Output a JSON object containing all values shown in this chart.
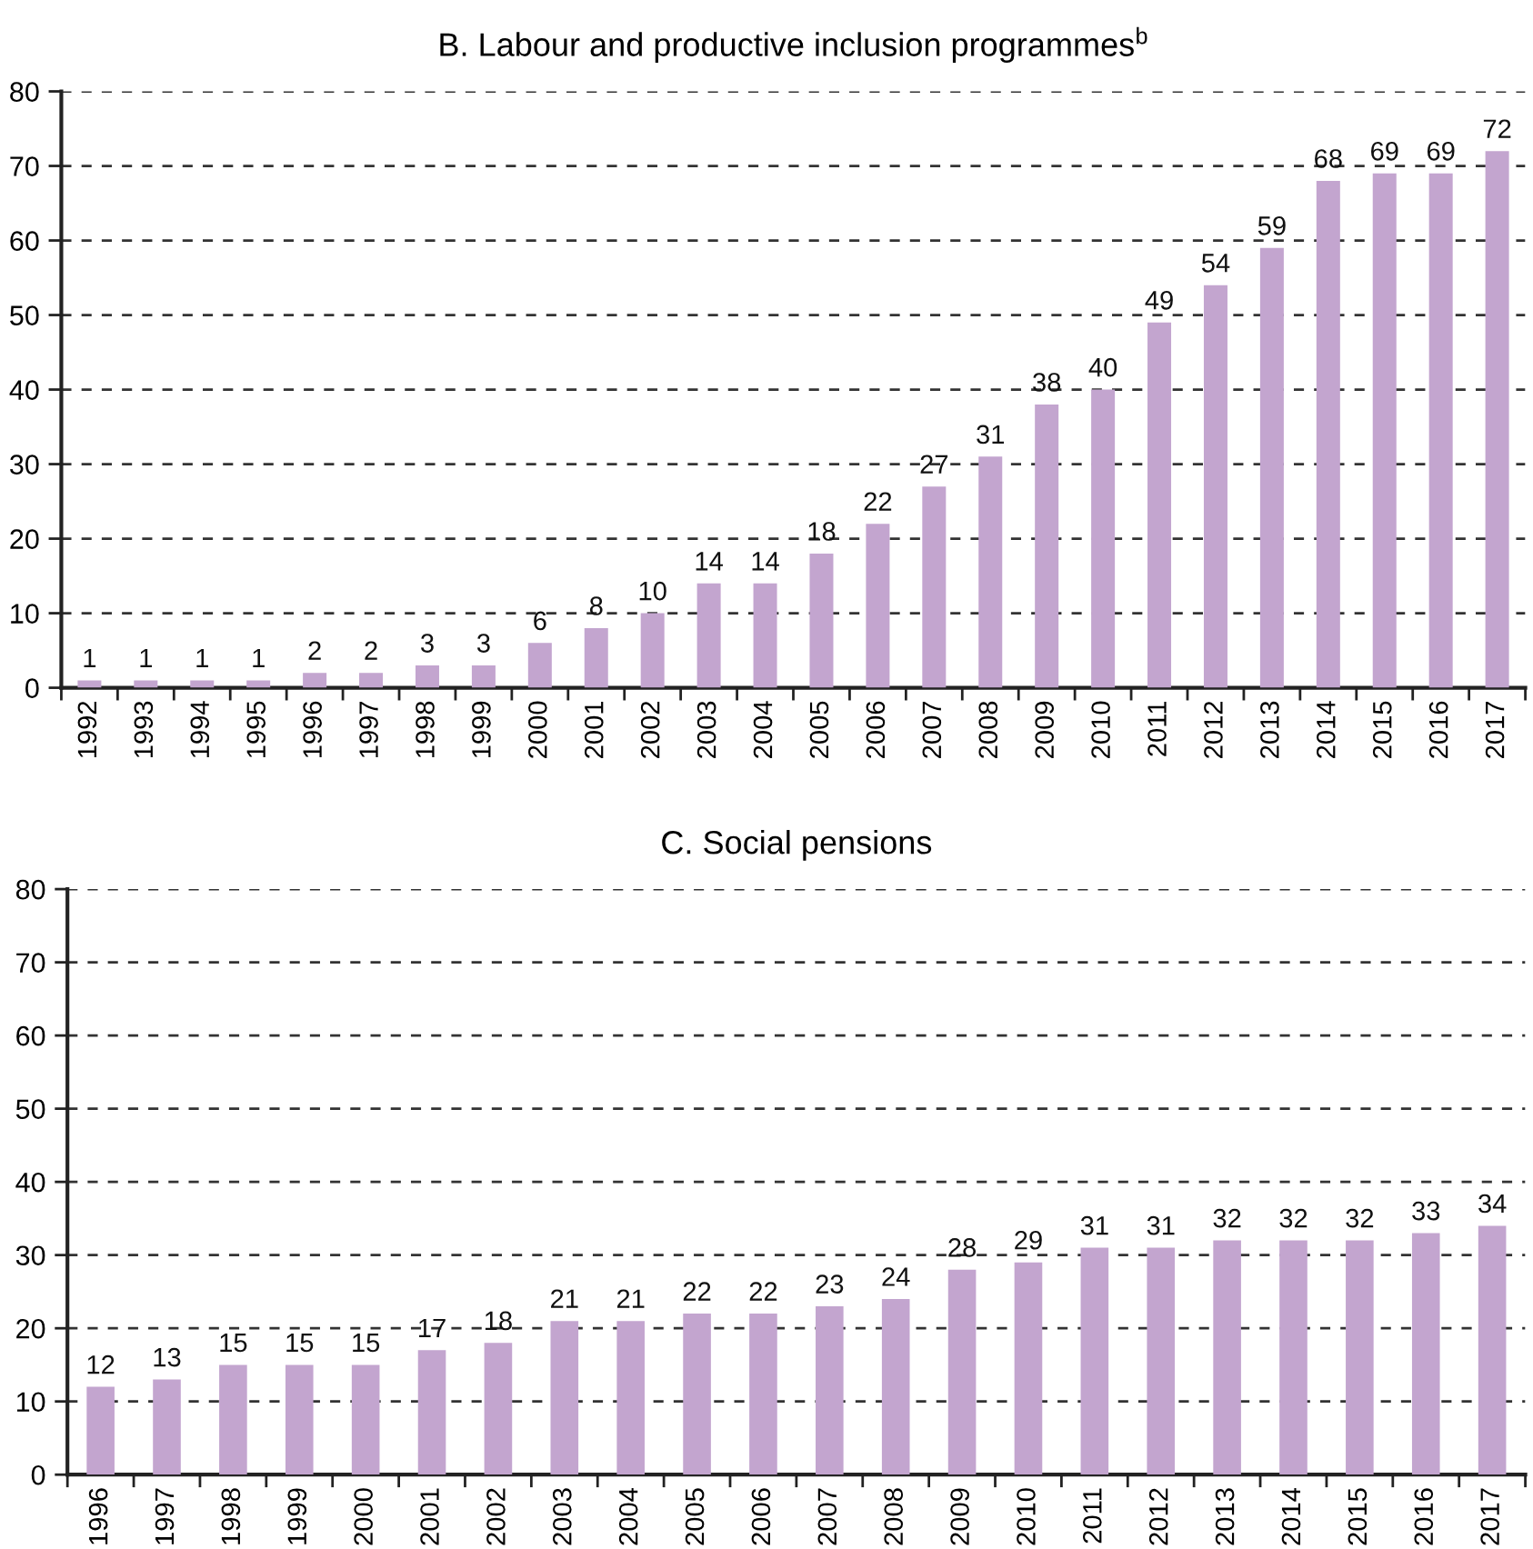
{
  "chart_data": [
    {
      "type": "bar",
      "title": "B. Labour and productive inclusion programmes$^{b}$",
      "categories": [
        "1992",
        "1993",
        "1994",
        "1995",
        "1996",
        "1997",
        "1998",
        "1999",
        "2000",
        "2001",
        "2002",
        "2003",
        "2004",
        "2005",
        "2006",
        "2007",
        "2008",
        "2009",
        "2010",
        "2011",
        "2012",
        "2013",
        "2014",
        "2015",
        "2016",
        "2017"
      ],
      "values": [
        1,
        1,
        1,
        1,
        2,
        2,
        3,
        3,
        6,
        8,
        10,
        14,
        14,
        18,
        22,
        27,
        31,
        38,
        40,
        49,
        54,
        59,
        68,
        69,
        69,
        72
      ],
      "color": "#c3a5cf",
      "ylim": [
        0,
        80
      ],
      "yticks": [
        0,
        10,
        20,
        30,
        40,
        50,
        60,
        70,
        80
      ],
      "grid": "y",
      "data_labels": true
    },
    {
      "type": "bar",
      "title": "C. Social pensions",
      "categories": [
        "1996",
        "1997",
        "1998",
        "1999",
        "2000",
        "2001",
        "2002",
        "2003",
        "2004",
        "2005",
        "2006",
        "2007",
        "2008",
        "2009",
        "2010",
        "2011",
        "2012",
        "2013",
        "2014",
        "2015",
        "2016",
        "2017"
      ],
      "values": [
        12,
        13,
        15,
        15,
        15,
        17,
        18,
        21,
        21,
        22,
        22,
        23,
        24,
        28,
        29,
        31,
        31,
        32,
        32,
        32,
        33,
        34
      ],
      "color": "#c3a5cf",
      "ylim": [
        0,
        80
      ],
      "yticks": [
        0,
        10,
        20,
        30,
        40,
        50,
        60,
        70,
        80
      ],
      "grid": "y",
      "data_labels": true
    }
  ]
}
